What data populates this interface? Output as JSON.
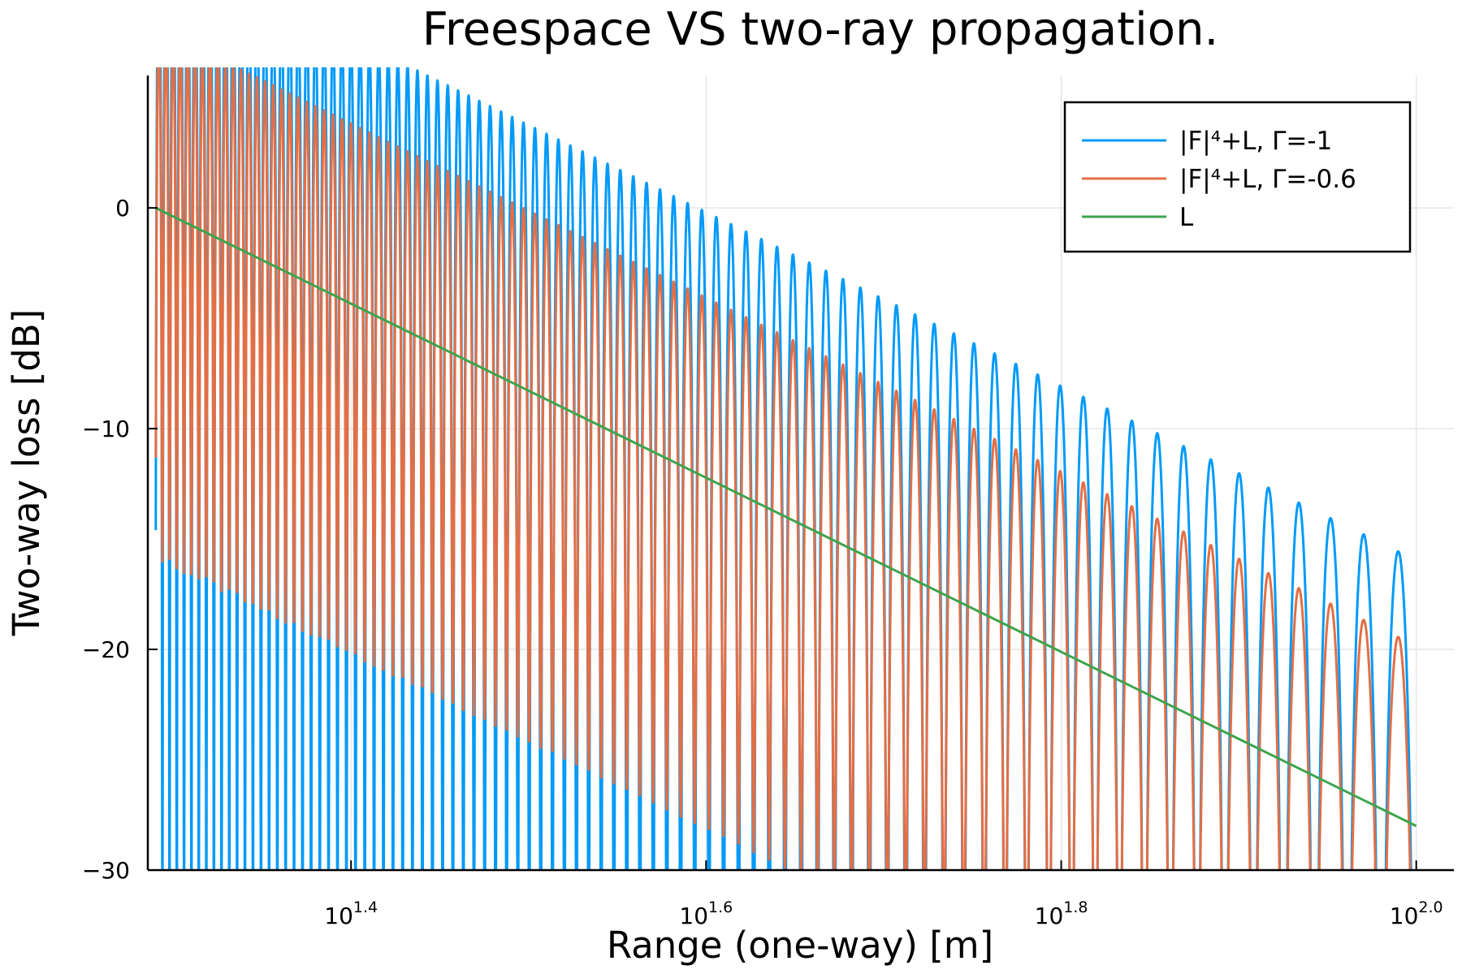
{
  "chart_data": {
    "type": "line",
    "title": "Freespace VS two-ray propagation.",
    "xlabel": "Range (one-way) [m]",
    "ylabel": "Two-way loss [dB]",
    "x_scale": "log10",
    "xlim": [
      19.3,
      105
    ],
    "ylim": [
      -30,
      6
    ],
    "x_ticks": [
      {
        "value": 25.12,
        "base": "10",
        "exp": "1.4"
      },
      {
        "value": 39.81,
        "base": "10",
        "exp": "1.6"
      },
      {
        "value": 63.1,
        "base": "10",
        "exp": "1.8"
      },
      {
        "value": 100.0,
        "base": "10",
        "exp": "2.0"
      }
    ],
    "y_ticks": [
      {
        "value": 0,
        "label": "0"
      },
      {
        "value": -10,
        "label": "−10"
      },
      {
        "value": -20,
        "label": "−20"
      },
      {
        "value": -30,
        "label": "−30"
      }
    ],
    "grid": true,
    "legend_position": "top-right",
    "series": [
      {
        "name": "|F|⁴+L, Γ=-1",
        "color": "#009af9",
        "reflection": -1
      },
      {
        "name": "|F|⁴+L, Γ=-0.6",
        "color": "#e26f46",
        "reflection": -0.6
      },
      {
        "name": "L",
        "color": "#3da44d",
        "x": [
          19.5,
          100
        ],
        "y": [
          0.0,
          -28.0
        ]
      }
    ]
  }
}
